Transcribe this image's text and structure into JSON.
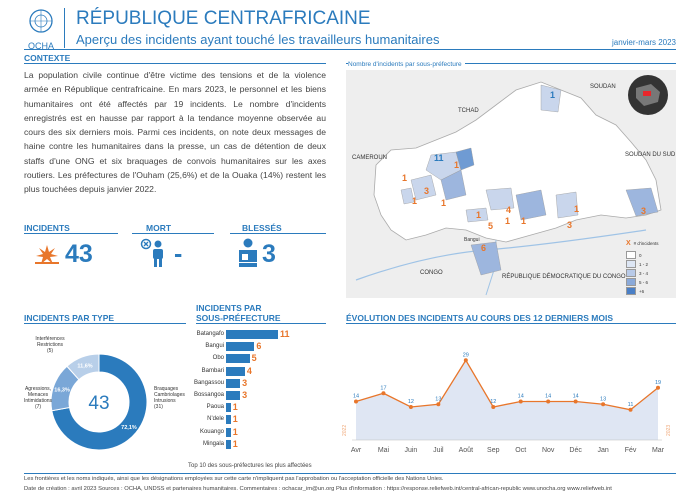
{
  "header": {
    "logo_text": "OCHA",
    "title": "RÉPUBLIQUE CENTRAFRICAINE",
    "subtitle": "Aperçu des incidents ayant touché les travailleurs humanitaires",
    "period": "janvier-mars 2023"
  },
  "context": {
    "heading": "CONTEXTE",
    "body": "La population civile continue d'être victime des tensions et de la violence armée en République centrafricaine. En mars 2023, le personnel et les biens humanitaires ont été affectés par 19 incidents. Le nombre d'incidents enregistrés est en hausse par rapport à la tendance moyenne observée au cours des six derniers mois. Parmi ces incidents, on note deux messages de haine contre les humanitaires dans la presse, un cas de détention de deux staffs d'une ONG et six braquages de convois humanitaires sur les axes routiers. Les préfectures de l'Ouham (25,6%) et de la Ouaka (14%) restent les plus touchées depuis janvier 2022."
  },
  "kpis": {
    "incidents_label": "INCIDENTS",
    "incidents_value": "43",
    "deaths_label": "MORT",
    "deaths_value": "-",
    "injured_label": "BLESSÉS",
    "injured_value": "3"
  },
  "map": {
    "title": "Nombre d'incidents par sous-préfecture",
    "countries": {
      "chad": "TCHAD",
      "sudan": "SOUDAN",
      "south_sudan": "SOUDAN DU SUD",
      "cameroon": "CAMEROUN",
      "congo": "CONGO",
      "drc": "RÉPUBLIQUE DÉMOCRATIQUE DU CONGO",
      "bangui": "Bangui"
    },
    "legend": {
      "marker": "# d'incidents",
      "classes": [
        "0",
        "1 - 2",
        "3 - 4",
        "5 - 6",
        "+6"
      ]
    },
    "numbers": [
      "1",
      "11",
      "1",
      "1",
      "1",
      "3",
      "1",
      "4",
      "1",
      "5",
      "1",
      "3",
      "3",
      "1",
      "6",
      "1"
    ]
  },
  "type_chart": {
    "heading": "INCIDENTS PAR TYPE",
    "center": "43",
    "labels": {
      "interferences": "Interférences\nRestrictions\n(5)",
      "agressions": "Agressions,\nMenaces\nIntimidations\n(7)",
      "braquages": "Braquages\nCambriolages\nIntrusions\n(31)"
    },
    "colors": {
      "braquages": "#2b7bbd",
      "agressions": "#7aa7d7",
      "interferences": "#b8cfe9"
    }
  },
  "prefecture_chart": {
    "heading_1": "INCIDENTS PAR",
    "heading_2": "SOUS-PRÉFECTURE",
    "footnote": "Top 10 des sous-préfectures les plus affectées"
  },
  "trend_chart": {
    "heading": "ÉVOLUTION DES INCIDENTS AU COURS DES 12 DERNIERS MOIS",
    "year_left": "2022",
    "year_right": "2023"
  },
  "chart_data": [
    {
      "type": "pie",
      "title": "INCIDENTS PAR TYPE",
      "categories": [
        "Braquages Cambriolages Intrusions",
        "Agressions, Menaces Intimidations",
        "Interférences Restrictions"
      ],
      "values": [
        31,
        7,
        5
      ],
      "percent_labels": [
        "72,1%",
        "16,3%",
        "11,6%"
      ],
      "total": 43
    },
    {
      "type": "bar",
      "title": "INCIDENTS PAR SOUS-PRÉFECTURE",
      "categories": [
        "Batangafo",
        "Bangui",
        "Obo",
        "Bambari",
        "Bangassou",
        "Bossangoa",
        "Paoua",
        "N'dele",
        "Kouango",
        "Mingala"
      ],
      "values": [
        11,
        6,
        5,
        4,
        3,
        3,
        1,
        1,
        1,
        1
      ]
    },
    {
      "type": "line",
      "title": "ÉVOLUTION DES INCIDENTS AU COURS DES 12 DERNIERS MOIS",
      "categories": [
        "Avr",
        "Mai",
        "Juin",
        "Juil",
        "Août",
        "Sep",
        "Oct",
        "Nov",
        "Déc",
        "Jan",
        "Fév",
        "Mar"
      ],
      "values": [
        14,
        17,
        12,
        13,
        29,
        12,
        14,
        14,
        14,
        13,
        11,
        19
      ]
    }
  ],
  "footer": {
    "line1": "Les frontières et les noms indiqués, ainsi que les désignations employées sur cette carte n'impliquent pas l'approbation ou l'acceptation officielle des Nations Unies.",
    "line2": "Date de création : avril 2023 Sources : OCHA, UNDSS et partenaires humanitaires. Commentaires : ochacar_im@un.org Plus d'information : https://response.reliefweb.int/central-african-republic www.unocha.org www.reliefweb.int"
  },
  "colors": {
    "accent": "#2b7bbd",
    "orange": "#e8762b"
  }
}
